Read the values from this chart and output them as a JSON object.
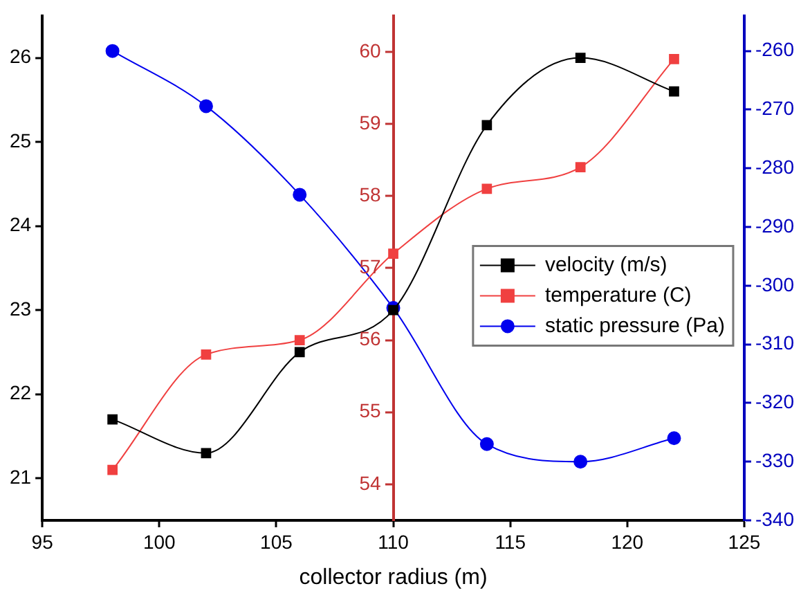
{
  "chart_data": {
    "type": "line",
    "xlabel": "collector radius (m)",
    "x": [
      98,
      102,
      106,
      110,
      114,
      118,
      122
    ],
    "xlim": [
      95,
      125
    ],
    "xticks": [
      95,
      100,
      105,
      110,
      115,
      120,
      125
    ],
    "ylim": [
      20.5,
      26.5
    ],
    "yticks": [
      21,
      22,
      23,
      24,
      25,
      26
    ],
    "y2lim": [
      53.5,
      60.5
    ],
    "y2ticks": [
      54,
      55,
      56,
      57,
      58,
      59,
      60
    ],
    "y3lim": [
      -340,
      -254
    ],
    "y3ticks": [
      -260,
      -270,
      -280,
      -290,
      -300,
      -310,
      -320,
      -330,
      -340
    ],
    "grid": false,
    "legend": "right",
    "series": [
      {
        "name": "velocity (m/s)",
        "color": "#000000",
        "marker": "square",
        "axis": "y",
        "values": [
          21.7,
          21.3,
          22.5,
          23.0,
          25.2,
          26.0,
          25.6
        ]
      },
      {
        "name": "temperature (C)",
        "color": "#f04040",
        "marker": "square",
        "axis": "y2",
        "values": [
          54.2,
          55.8,
          56.0,
          57.2,
          58.1,
          58.4,
          59.9
        ]
      },
      {
        "name": "static pressure (Pa)",
        "color": "#0000ee",
        "marker": "circle",
        "axis": "y3",
        "values": [
          -260,
          -269.4,
          -284.5,
          -303.8,
          -327,
          -330,
          -326
        ]
      }
    ]
  }
}
